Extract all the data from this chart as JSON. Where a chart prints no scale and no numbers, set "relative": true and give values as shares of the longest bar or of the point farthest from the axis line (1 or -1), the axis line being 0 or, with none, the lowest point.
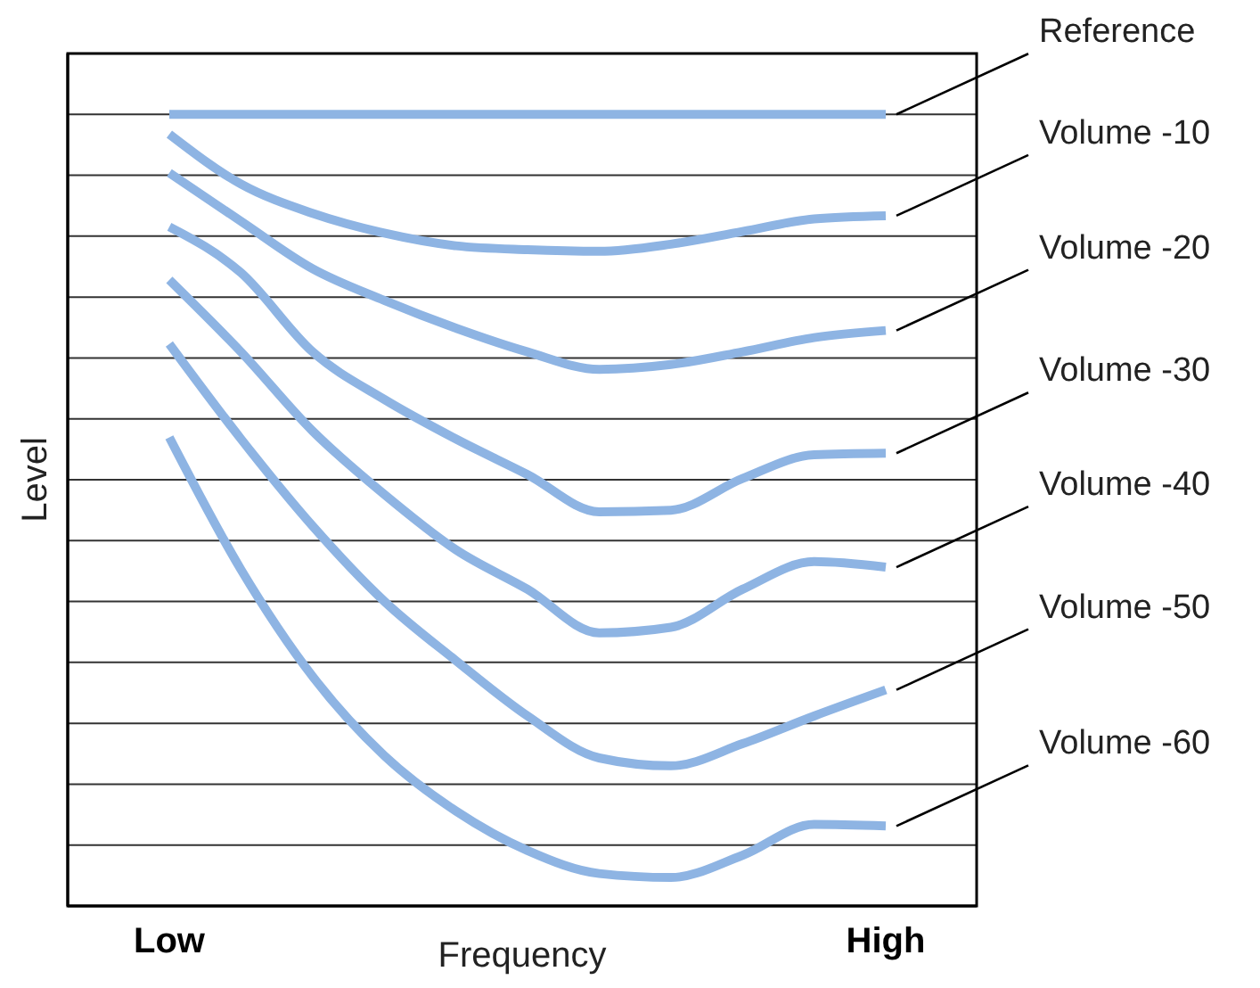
{
  "chart_data": {
    "type": "line",
    "relative": true,
    "xlabel": "Frequency",
    "ylabel": "Level",
    "categories": [
      "Low",
      null,
      null,
      null,
      null,
      null,
      null,
      null,
      null,
      null,
      "High"
    ],
    "grid": "y",
    "legend": false,
    "marker": "none",
    "line_style": "solid",
    "series": [
      {
        "name": "Reference",
        "color": "#8eb4e3",
        "values": [
          1,
          1,
          1,
          1,
          1,
          1,
          1,
          1,
          1,
          1,
          1
        ]
      },
      {
        "name": "Volume -10",
        "color": "#8eb4e3",
        "values": [
          0.975,
          0.912,
          0.875,
          0.85,
          0.834,
          0.829,
          0.827,
          0.836,
          0.852,
          0.868,
          0.872
        ]
      },
      {
        "name": "Volume -20",
        "color": "#8eb4e3",
        "values": [
          0.926,
          0.865,
          0.805,
          0.765,
          0.73,
          0.7,
          0.678,
          0.684,
          0.7,
          0.718,
          0.727
        ]
      },
      {
        "name": "Volume -30",
        "color": "#8eb4e3",
        "values": [
          0.858,
          0.8,
          0.7,
          0.64,
          0.59,
          0.545,
          0.498,
          0.5,
          0.54,
          0.57,
          0.572
        ]
      },
      {
        "name": "Volume -40",
        "color": "#8eb4e3",
        "values": [
          0.791,
          0.7,
          0.6,
          0.52,
          0.45,
          0.4,
          0.345,
          0.352,
          0.4,
          0.435,
          0.428
        ]
      },
      {
        "name": "Volume -50",
        "color": "#8eb4e3",
        "values": [
          0.71,
          0.59,
          0.48,
          0.385,
          0.31,
          0.24,
          0.187,
          0.177,
          0.205,
          0.24,
          0.273
        ]
      },
      {
        "name": "Volume -60",
        "color": "#8eb4e3",
        "values": [
          0.592,
          0.425,
          0.29,
          0.19,
          0.12,
          0.07,
          0.041,
          0.036,
          0.064,
          0.103,
          0.101
        ]
      }
    ]
  }
}
